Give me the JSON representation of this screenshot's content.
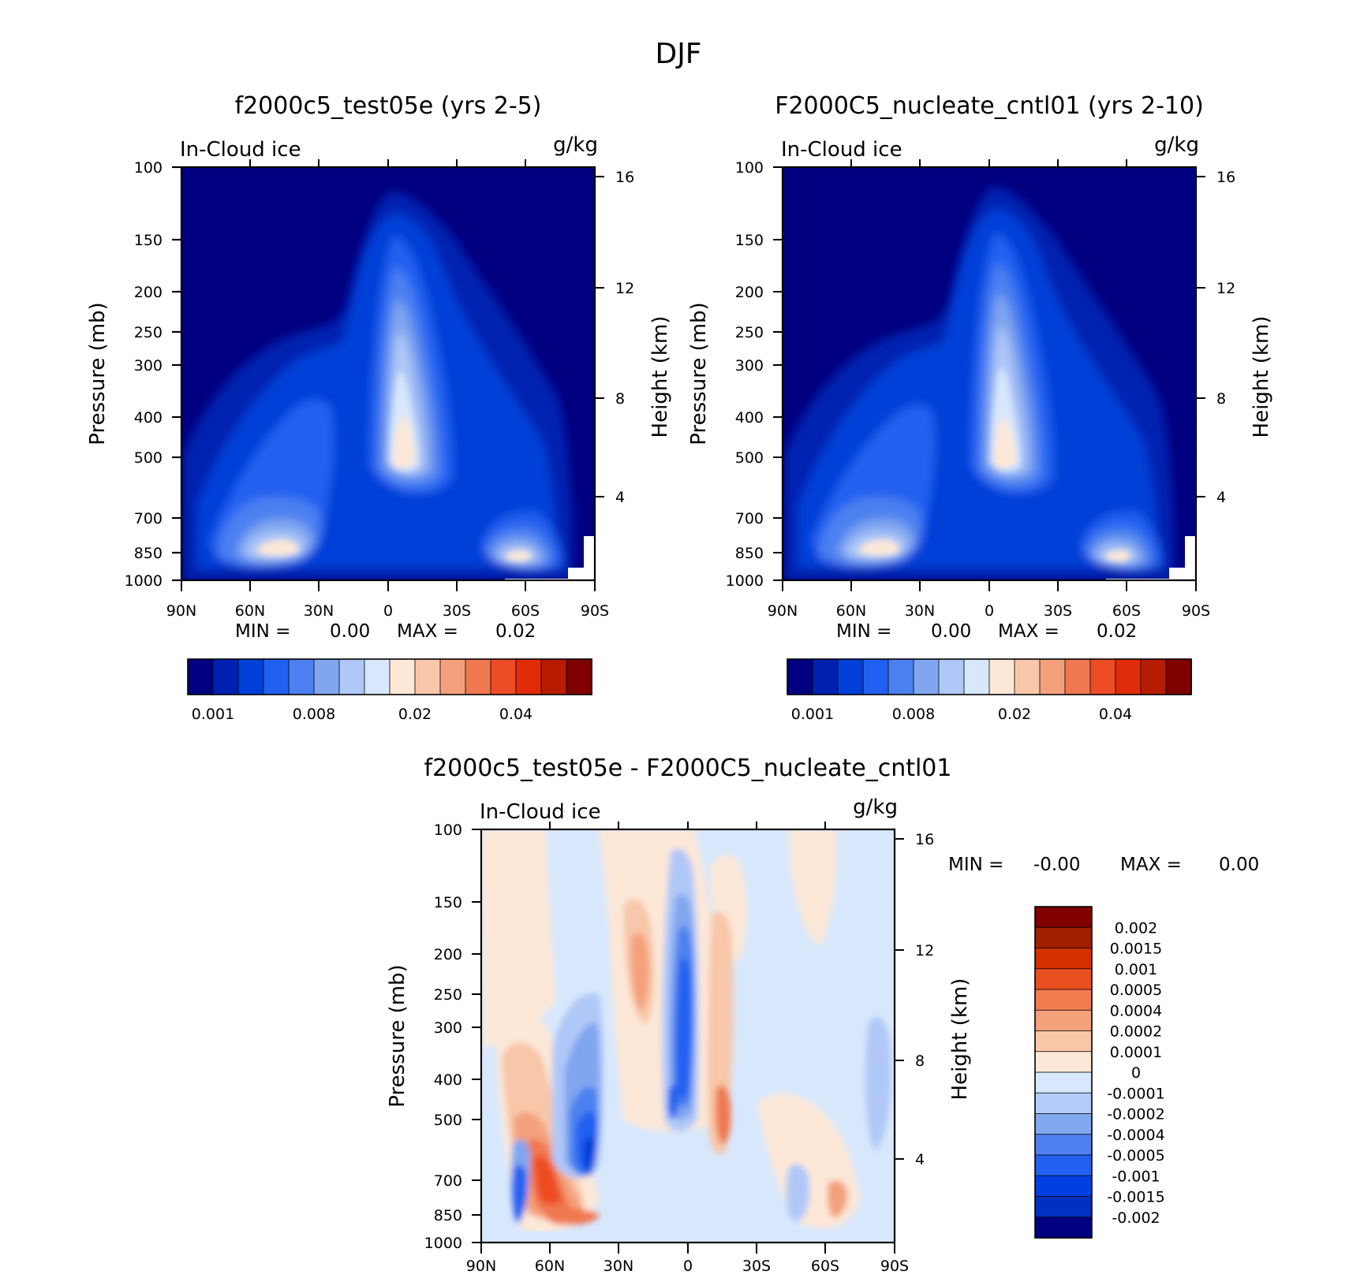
{
  "figure_title": "DJF",
  "colors": {
    "seq": [
      "#000080",
      "#0020b0",
      "#0040d8",
      "#2060f0",
      "#4c80f0",
      "#80a6f0",
      "#b0c8f8",
      "#d8e8fc",
      "#fde8d8",
      "#f8c6a8",
      "#f4a07c",
      "#f07850",
      "#ee4c24",
      "#e02c08",
      "#b81c00",
      "#800000"
    ],
    "diff": [
      "#000080",
      "#0030c0",
      "#0040e0",
      "#2460f0",
      "#5080f0",
      "#82a8f0",
      "#b4ccf8",
      "#d8e8fc",
      "#fde8d8",
      "#f8c8a8",
      "#f4a27c",
      "#f07c50",
      "#e85020",
      "#d43000",
      "#a02000",
      "#800000"
    ]
  },
  "chart_data": [
    {
      "type": "heatmap",
      "title": "f2000c5_test05e (yrs 2-5)",
      "left_label": "In-Cloud ice",
      "right_label": "g/kg",
      "ylabel": "Pressure (mb)",
      "y2label": "Height (km)",
      "x_ticks": [
        "90N",
        "60N",
        "30N",
        "0",
        "30S",
        "60S",
        "90S"
      ],
      "y_ticks": [
        "100",
        "150",
        "200",
        "250",
        "300",
        "400",
        "500",
        "700",
        "850",
        "1000"
      ],
      "y2_ticks": [
        "16",
        "12",
        "8",
        "4"
      ],
      "min_label": "MIN =",
      "min_value": "0.00",
      "max_label": "MAX =",
      "max_value": "0.02",
      "colorbar_labels": [
        "0.001",
        "0.008",
        "0.02",
        "0.04"
      ],
      "ylim": [
        1000,
        100
      ],
      "features": [
        {
          "name": "tropical deep ice column",
          "lat": 2,
          "p_top": 130,
          "p_bottom": 650,
          "level": 8
        },
        {
          "name": "NH midlatitude upper cloud",
          "lat": -38,
          "p_top": 260,
          "p_bottom": 650,
          "level": 3
        },
        {
          "name": "NH low-level maximum",
          "lat": -45,
          "p_top": 680,
          "p_bottom": 950,
          "level": 8
        },
        {
          "name": "SH low-level maximum",
          "lat": 62,
          "p_top": 740,
          "p_bottom": 960,
          "level": 8
        }
      ]
    },
    {
      "type": "heatmap",
      "title": "F2000C5_nucleate_cntl01 (yrs 2-10)",
      "left_label": "In-Cloud ice",
      "right_label": "g/kg",
      "ylabel": "Pressure (mb)",
      "y2label": "Height (km)",
      "x_ticks": [
        "90N",
        "60N",
        "30N",
        "0",
        "30S",
        "60S",
        "90S"
      ],
      "y_ticks": [
        "100",
        "150",
        "200",
        "250",
        "300",
        "400",
        "500",
        "700",
        "850",
        "1000"
      ],
      "y2_ticks": [
        "16",
        "12",
        "8",
        "4"
      ],
      "min_label": "MIN =",
      "min_value": "0.00",
      "max_label": "MAX =",
      "max_value": "0.02",
      "colorbar_labels": [
        "0.001",
        "0.008",
        "0.02",
        "0.04"
      ],
      "ylim": [
        1000,
        100
      ],
      "features": [
        {
          "name": "tropical deep ice column",
          "lat": 2,
          "p_top": 125,
          "p_bottom": 650,
          "level": 8
        },
        {
          "name": "NH midlatitude upper cloud",
          "lat": -38,
          "p_top": 270,
          "p_bottom": 650,
          "level": 3
        },
        {
          "name": "NH low-level maximum",
          "lat": -45,
          "p_top": 680,
          "p_bottom": 950,
          "level": 8
        },
        {
          "name": "SH low-level maximum",
          "lat": 60,
          "p_top": 740,
          "p_bottom": 960,
          "level": 8
        }
      ]
    },
    {
      "type": "heatmap",
      "title": "f2000c5_test05e - F2000C5_nucleate_cntl01",
      "left_label": "In-Cloud ice",
      "right_label": "g/kg",
      "ylabel": "Pressure (mb)",
      "y2label": "Height (km)",
      "x_ticks": [
        "90N",
        "60N",
        "30N",
        "0",
        "30S",
        "60S",
        "90S"
      ],
      "y_ticks": [
        "100",
        "150",
        "200",
        "250",
        "300",
        "400",
        "500",
        "700",
        "850",
        "1000"
      ],
      "y2_ticks": [
        "16",
        "12",
        "8",
        "4"
      ],
      "min_label": "MIN =",
      "min_value": "-0.00",
      "max_label": "MAX =",
      "max_value": "0.00",
      "colorbar_labels": [
        "0.002",
        "0.0015",
        "0.001",
        "0.0005",
        "0.0004",
        "0.0002",
        "0.0001",
        "0",
        "-0.0001",
        "-0.0002",
        "-0.0004",
        "-0.0005",
        "-0.001",
        "-0.0015",
        "-0.002"
      ],
      "ylim": [
        1000,
        100
      ],
      "features": [
        {
          "name": "positive low-level anomaly",
          "lat": -60,
          "value": 0.0015
        },
        {
          "name": "negative low-level anomaly",
          "lat": -40,
          "value": -0.001
        },
        {
          "name": "negative equatorial column",
          "lat": 8,
          "value": -0.001
        },
        {
          "name": "positive column south of equator",
          "lat": 16,
          "value": 0.0005
        }
      ]
    }
  ]
}
